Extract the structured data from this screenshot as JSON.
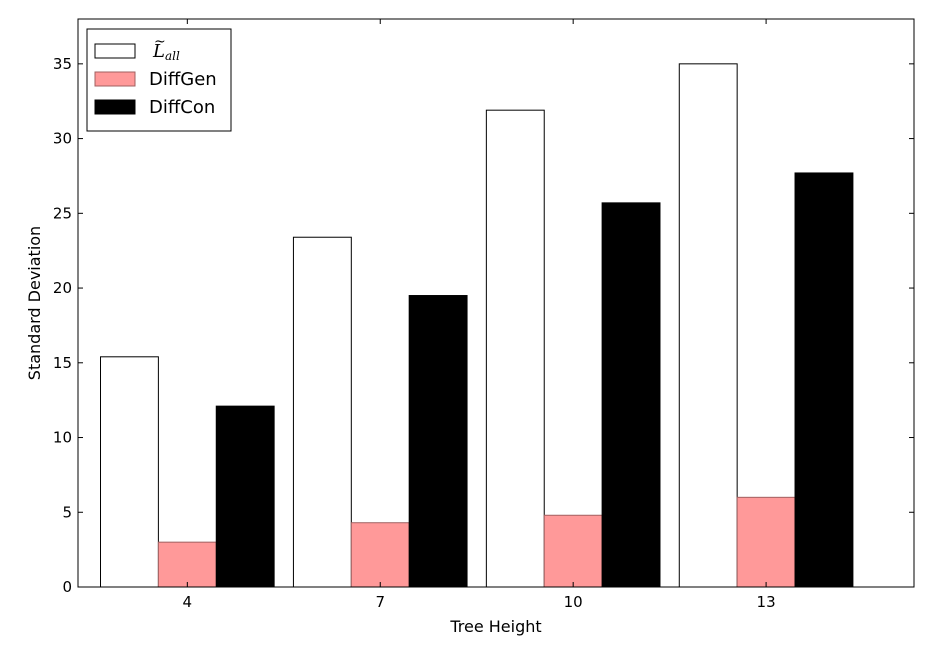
{
  "chart_data": {
    "type": "bar",
    "categories": [
      "4",
      "7",
      "10",
      "13"
    ],
    "series": [
      {
        "name": "L_all",
        "values": [
          15.4,
          23.4,
          31.9,
          35.0
        ],
        "color": "#ffffff",
        "edge": "#000000"
      },
      {
        "name": "DiffGen",
        "values": [
          3.0,
          4.3,
          4.8,
          6.0
        ],
        "color": "#ff9999",
        "edge": "#a06060"
      },
      {
        "name": "DiffCon",
        "values": [
          12.1,
          19.5,
          25.7,
          27.7
        ],
        "color": "#000000",
        "edge": "#000000"
      }
    ],
    "xlabel": "Tree Height",
    "ylabel": "Standard Deviation",
    "ylim": [
      0,
      38
    ],
    "xlim": [
      2.3,
      15.3
    ],
    "yticks": [
      0,
      5,
      10,
      15,
      20,
      25,
      30,
      35
    ],
    "legend_position": "top-left",
    "grid": false
  }
}
